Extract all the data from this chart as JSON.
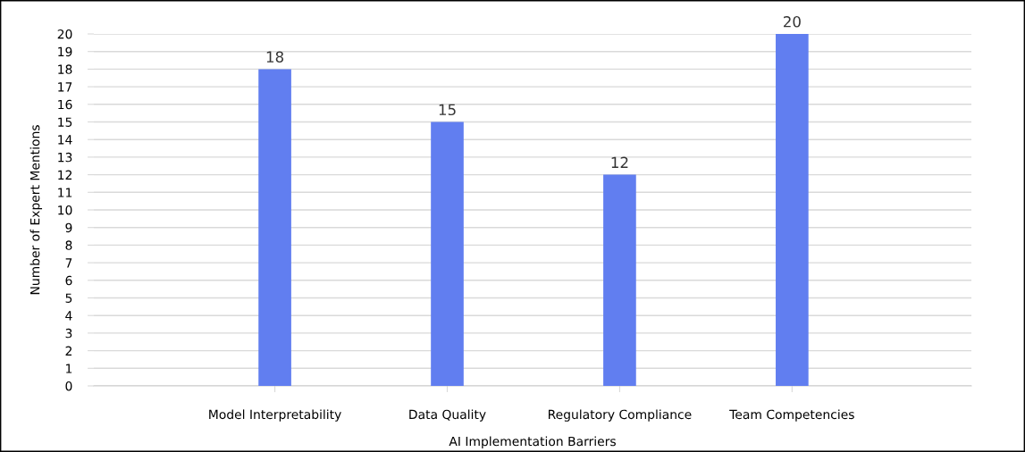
{
  "chart_data": {
    "type": "bar",
    "xlabel": "AI Implementation Barriers",
    "ylabel": "Number of Expert Mentions",
    "categories": [
      "Model Interpretability",
      "Data Quality",
      "Regulatory Compliance",
      "Team Competencies"
    ],
    "values": [
      18,
      15,
      12,
      20
    ],
    "color": "#617ef0",
    "ylim": [
      0,
      20
    ],
    "yticks": [
      0,
      1,
      2,
      3,
      4,
      5,
      6,
      7,
      8,
      9,
      10,
      11,
      12,
      13,
      14,
      15,
      16,
      17,
      18,
      19,
      20
    ],
    "grid": "y",
    "data_labels": true
  }
}
